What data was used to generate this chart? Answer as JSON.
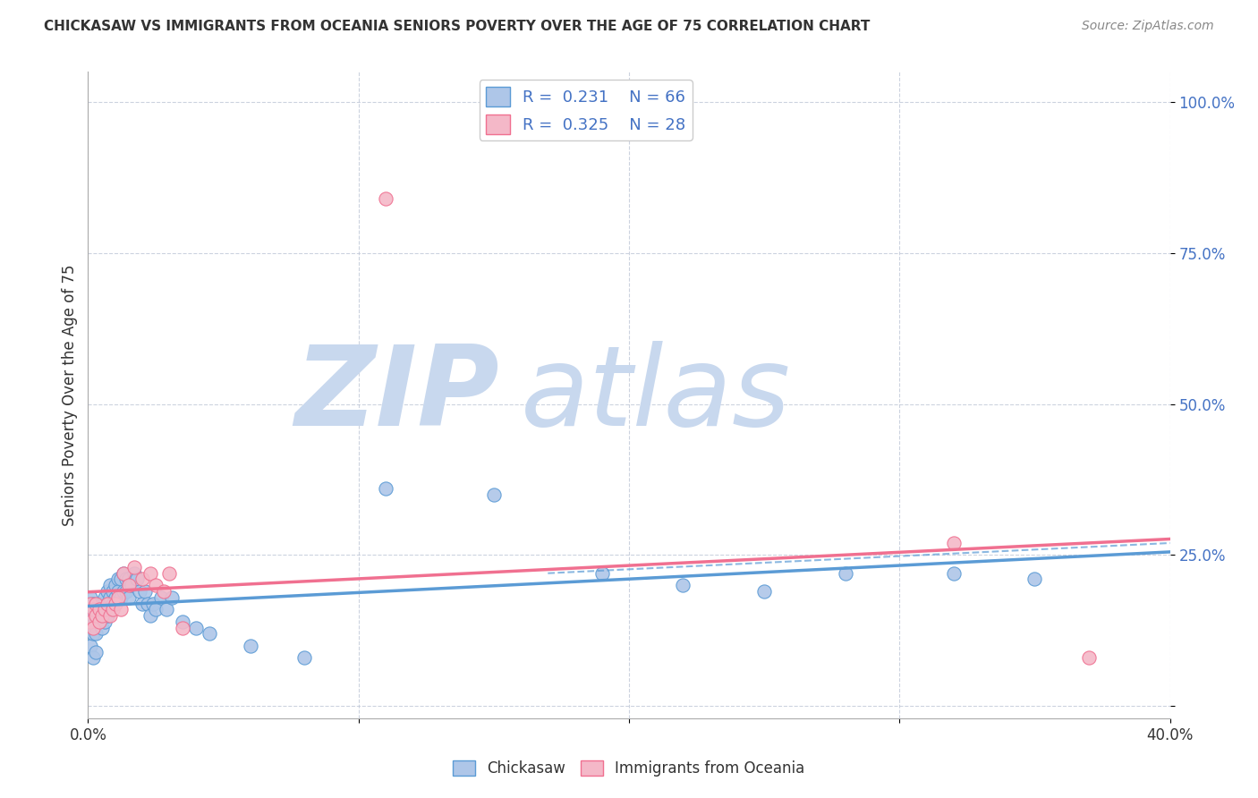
{
  "title": "CHICKASAW VS IMMIGRANTS FROM OCEANIA SENIORS POVERTY OVER THE AGE OF 75 CORRELATION CHART",
  "source": "Source: ZipAtlas.com",
  "ylabel": "Seniors Poverty Over the Age of 75",
  "xlim": [
    0.0,
    0.4
  ],
  "ylim": [
    -0.02,
    1.05
  ],
  "yticks": [
    0.0,
    0.25,
    0.5,
    0.75,
    1.0
  ],
  "ytick_labels": [
    "",
    "25.0%",
    "50.0%",
    "75.0%",
    "100.0%"
  ],
  "xticks": [
    0.0,
    0.1,
    0.2,
    0.3,
    0.4
  ],
  "xtick_labels": [
    "0.0%",
    "",
    "",
    "",
    "40.0%"
  ],
  "chickasaw_R": 0.231,
  "chickasaw_N": 66,
  "oceania_R": 0.325,
  "oceania_N": 28,
  "chickasaw_color": "#aec6e8",
  "oceania_color": "#f4b8c8",
  "chickasaw_line_color": "#5b9bd5",
  "oceania_line_color": "#f07090",
  "watermark_zip_color": "#c8d8ee",
  "watermark_atlas_color": "#c8d8ee",
  "background_color": "#ffffff",
  "chickasaw_x": [
    0.001,
    0.001,
    0.001,
    0.002,
    0.002,
    0.002,
    0.002,
    0.003,
    0.003,
    0.003,
    0.003,
    0.004,
    0.004,
    0.004,
    0.005,
    0.005,
    0.005,
    0.006,
    0.006,
    0.006,
    0.007,
    0.007,
    0.007,
    0.008,
    0.008,
    0.008,
    0.009,
    0.009,
    0.01,
    0.01,
    0.011,
    0.011,
    0.012,
    0.012,
    0.013,
    0.013,
    0.014,
    0.014,
    0.015,
    0.015,
    0.016,
    0.017,
    0.018,
    0.019,
    0.02,
    0.021,
    0.022,
    0.023,
    0.024,
    0.025,
    0.027,
    0.029,
    0.031,
    0.035,
    0.04,
    0.045,
    0.06,
    0.08,
    0.11,
    0.15,
    0.19,
    0.22,
    0.25,
    0.28,
    0.32,
    0.35
  ],
  "chickasaw_y": [
    0.18,
    0.15,
    0.1,
    0.17,
    0.15,
    0.12,
    0.08,
    0.16,
    0.14,
    0.12,
    0.09,
    0.17,
    0.16,
    0.14,
    0.17,
    0.15,
    0.13,
    0.18,
    0.16,
    0.14,
    0.19,
    0.17,
    0.15,
    0.2,
    0.18,
    0.16,
    0.19,
    0.17,
    0.2,
    0.18,
    0.21,
    0.19,
    0.21,
    0.18,
    0.22,
    0.19,
    0.21,
    0.19,
    0.21,
    0.18,
    0.2,
    0.22,
    0.21,
    0.19,
    0.17,
    0.19,
    0.17,
    0.15,
    0.17,
    0.16,
    0.18,
    0.16,
    0.18,
    0.14,
    0.13,
    0.12,
    0.1,
    0.08,
    0.36,
    0.35,
    0.22,
    0.2,
    0.19,
    0.22,
    0.22,
    0.21
  ],
  "oceania_x": [
    0.001,
    0.001,
    0.002,
    0.002,
    0.003,
    0.003,
    0.004,
    0.004,
    0.005,
    0.006,
    0.007,
    0.008,
    0.009,
    0.01,
    0.011,
    0.012,
    0.013,
    0.015,
    0.017,
    0.02,
    0.023,
    0.025,
    0.028,
    0.03,
    0.035,
    0.11,
    0.32,
    0.37
  ],
  "oceania_y": [
    0.17,
    0.14,
    0.16,
    0.13,
    0.17,
    0.15,
    0.16,
    0.14,
    0.15,
    0.16,
    0.17,
    0.15,
    0.16,
    0.17,
    0.18,
    0.16,
    0.22,
    0.2,
    0.23,
    0.21,
    0.22,
    0.2,
    0.19,
    0.22,
    0.13,
    0.84,
    0.27,
    0.08
  ],
  "legend_border_color": "#cccccc"
}
